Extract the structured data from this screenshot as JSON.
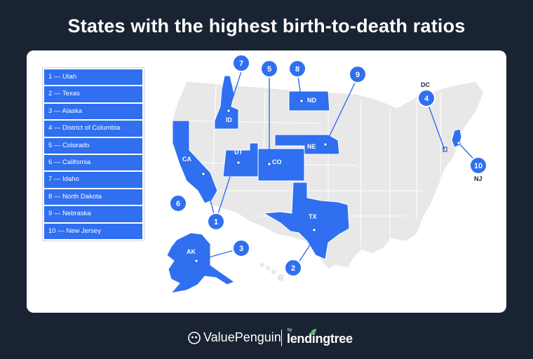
{
  "title": "States with the highest birth-to-death ratios",
  "legend": [
    "1 — Utah",
    "2 — Texas",
    "3 — Alaska",
    "4 — District of Columbia",
    "5 — Colorado",
    "6 — California",
    "7 — Idaho",
    "8 — North Dakota",
    "9 — Nebraska",
    "10 — New Jersey"
  ],
  "map": {
    "highlight_color": "#2f6ff0",
    "base_color": "#e8e8e8",
    "highlighted_states": [
      {
        "rank": "1",
        "abbr": "UT"
      },
      {
        "rank": "2",
        "abbr": "TX"
      },
      {
        "rank": "3",
        "abbr": "AK"
      },
      {
        "rank": "4",
        "abbr": "DC"
      },
      {
        "rank": "5",
        "abbr": "CO"
      },
      {
        "rank": "6",
        "abbr": "CA"
      },
      {
        "rank": "7",
        "abbr": "ID"
      },
      {
        "rank": "8",
        "abbr": "ND"
      },
      {
        "rank": "9",
        "abbr": "NE"
      },
      {
        "rank": "10",
        "abbr": "NJ"
      }
    ]
  },
  "footer": {
    "brand1": "ValuePenguin",
    "by": "by",
    "brand2": "lendingtree"
  }
}
